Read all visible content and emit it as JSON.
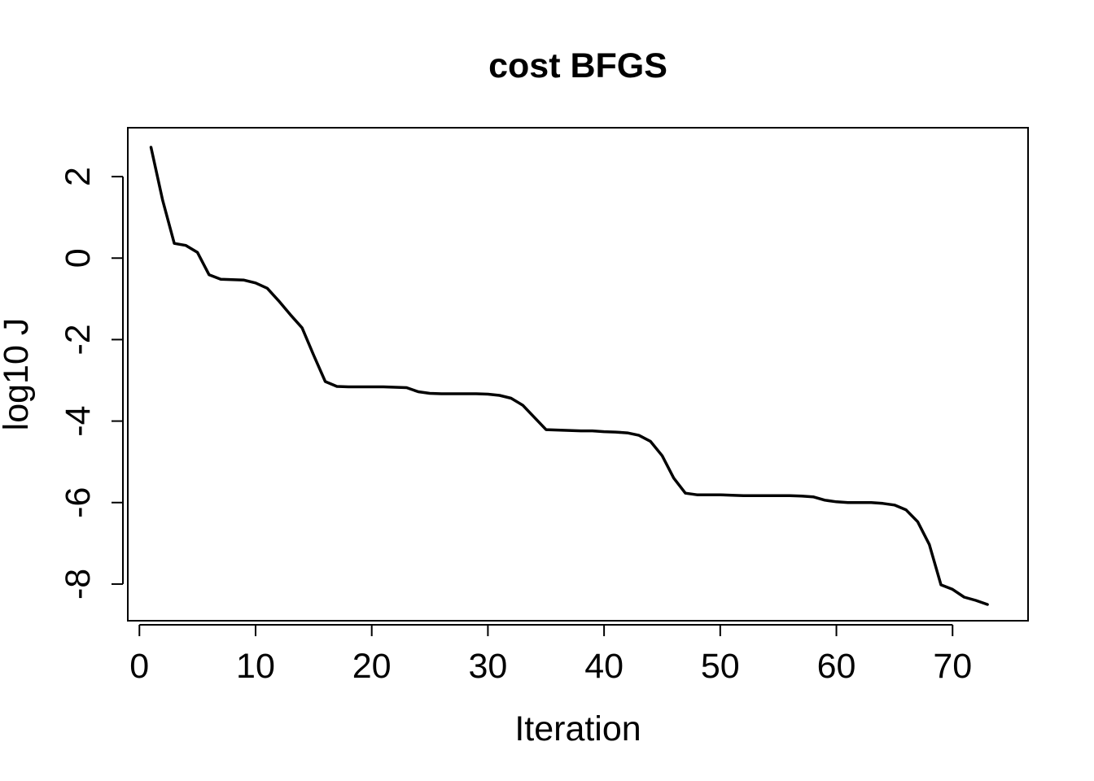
{
  "chart_data": {
    "type": "line",
    "title": "cost BFGS",
    "xlabel": "Iteration",
    "ylabel": "log10 J",
    "xlim": [
      -1,
      76.5
    ],
    "ylim": [
      -8.9,
      3.2
    ],
    "xticks": [
      0,
      10,
      20,
      30,
      40,
      50,
      60,
      70
    ],
    "yticks": [
      2,
      0,
      -2,
      -4,
      -6,
      -8
    ],
    "grid": false,
    "series": [
      {
        "name": "cost",
        "x": [
          1,
          2,
          3,
          4,
          5,
          6,
          7,
          8,
          9,
          10,
          11,
          12,
          13,
          14,
          15,
          16,
          17,
          18,
          19,
          20,
          21,
          22,
          23,
          24,
          25,
          26,
          27,
          28,
          29,
          30,
          31,
          32,
          33,
          34,
          35,
          36,
          37,
          38,
          39,
          40,
          41,
          42,
          43,
          44,
          45,
          46,
          47,
          48,
          49,
          50,
          51,
          52,
          53,
          54,
          55,
          56,
          57,
          58,
          59,
          60,
          61,
          62,
          63,
          64,
          65,
          66,
          67,
          68,
          69,
          70,
          71,
          72,
          73
        ],
        "values": [
          2.72,
          1.42,
          0.36,
          0.31,
          0.14,
          -0.41,
          -0.52,
          -0.53,
          -0.54,
          -0.61,
          -0.74,
          -1.05,
          -1.39,
          -1.71,
          -2.38,
          -3.03,
          -3.15,
          -3.16,
          -3.16,
          -3.16,
          -3.16,
          -3.17,
          -3.18,
          -3.28,
          -3.32,
          -3.33,
          -3.33,
          -3.33,
          -3.33,
          -3.34,
          -3.37,
          -3.44,
          -3.61,
          -3.91,
          -4.21,
          -4.22,
          -4.23,
          -4.24,
          -4.24,
          -4.26,
          -4.27,
          -4.29,
          -4.35,
          -4.5,
          -4.85,
          -5.4,
          -5.77,
          -5.81,
          -5.81,
          -5.81,
          -5.82,
          -5.83,
          -5.83,
          -5.83,
          -5.83,
          -5.83,
          -5.84,
          -5.86,
          -5.94,
          -5.98,
          -6.0,
          -6.0,
          -6.0,
          -6.02,
          -6.06,
          -6.18,
          -6.47,
          -7.03,
          -8.02,
          -8.13,
          -8.32,
          -8.4,
          -8.5
        ]
      }
    ]
  }
}
